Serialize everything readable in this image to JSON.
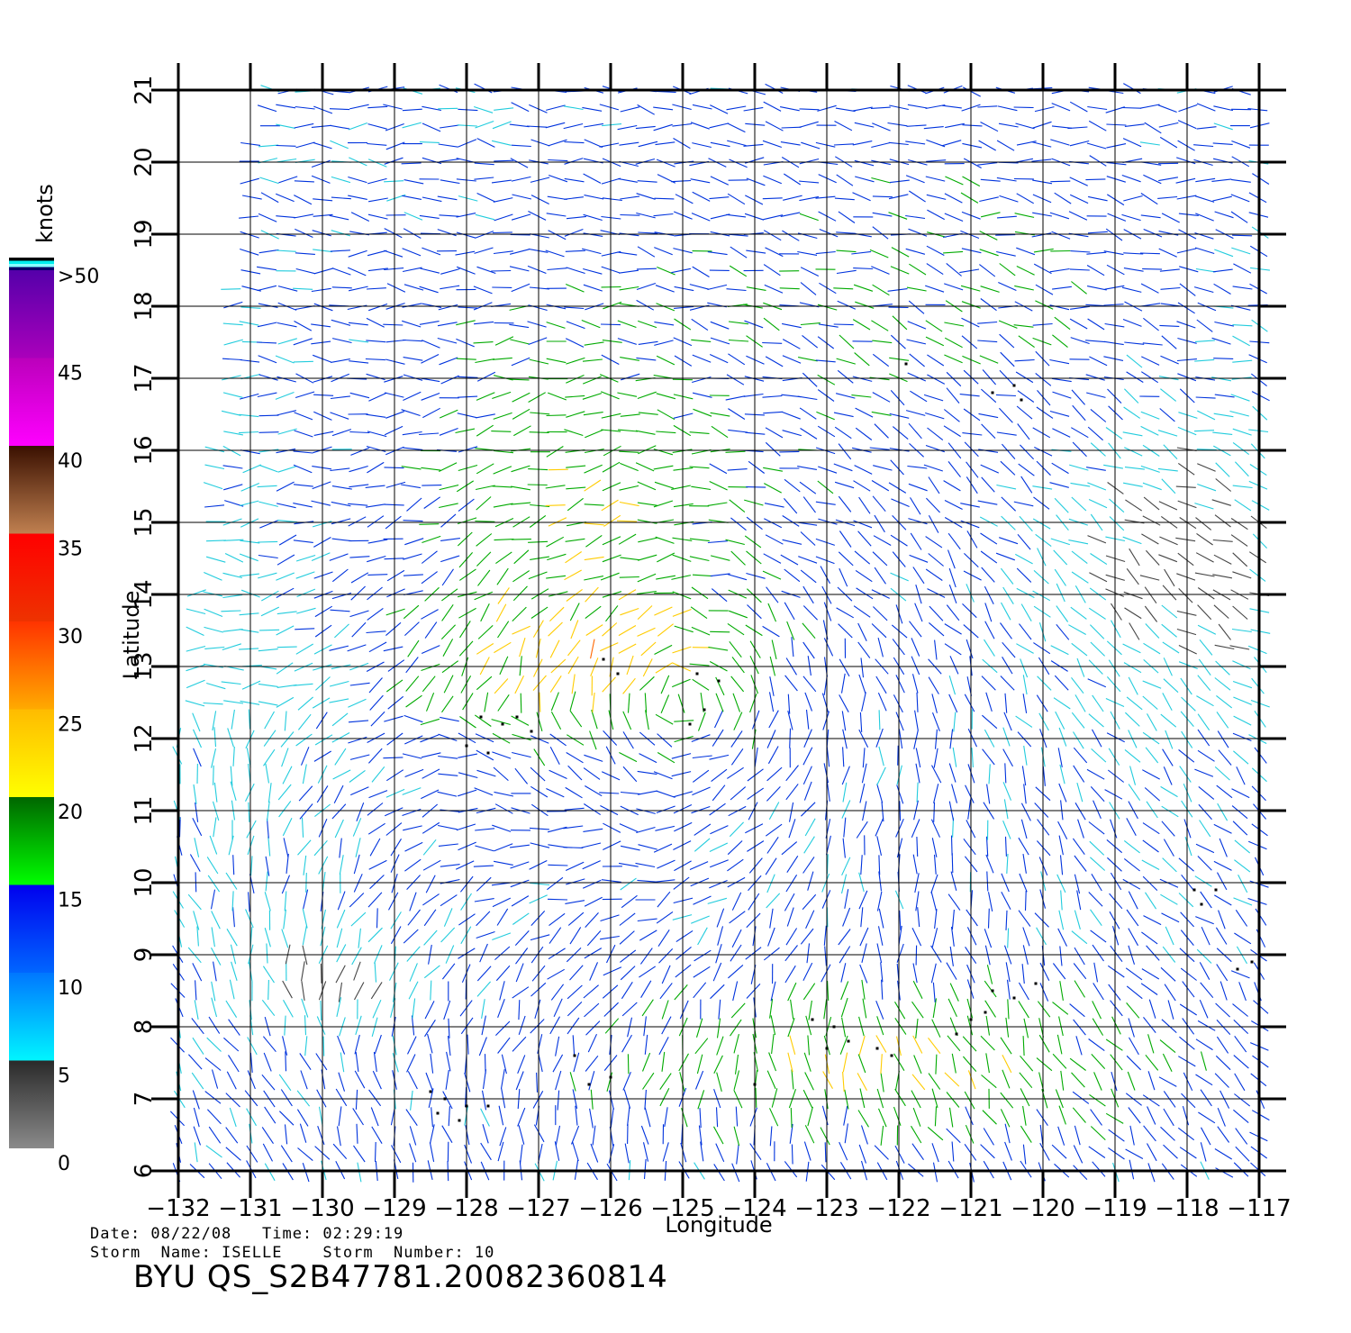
{
  "map": {
    "xlabel": "Longitude",
    "ylabel": "Latitude",
    "lon_range": [
      -132,
      -117
    ],
    "lat_range": [
      6,
      21
    ],
    "lon_ticks": [
      "−132",
      "−131",
      "−130",
      "−129",
      "−128",
      "−127",
      "−126",
      "−125",
      "−124",
      "−123",
      "−122",
      "−121",
      "−120",
      "−119",
      "−118",
      "−117"
    ],
    "lat_ticks": [
      "6",
      "7",
      "8",
      "9",
      "10",
      "11",
      "12",
      "13",
      "14",
      "15",
      "16",
      "17",
      "18",
      "19",
      "20",
      "21"
    ],
    "grid": true
  },
  "colorbar": {
    "unit": "knots",
    "labels": [
      ">50",
      "45",
      "40",
      "35",
      "30",
      "25",
      "20",
      "15",
      "10",
      "5",
      "0"
    ],
    "bands": [
      {
        "from": 0,
        "to": 5,
        "top": "#2a2a2a",
        "bottom": "#8a8a8a"
      },
      {
        "from": 5,
        "to": 10,
        "top": "#0077ff",
        "bottom": "#00f5ff"
      },
      {
        "from": 10,
        "to": 15,
        "top": "#0000ee",
        "bottom": "#0066ff"
      },
      {
        "from": 15,
        "to": 20,
        "top": "#006600",
        "bottom": "#00ff00"
      },
      {
        "from": 20,
        "to": 25,
        "top": "#ffbb00",
        "bottom": "#ffff00"
      },
      {
        "from": 25,
        "to": 30,
        "top": "#ff3300",
        "bottom": "#ffaa00"
      },
      {
        "from": 30,
        "to": 35,
        "top": "#ff0000",
        "bottom": "#ee3300"
      },
      {
        "from": 35,
        "to": 40,
        "top": "#3a1000",
        "bottom": "#c08050"
      },
      {
        "from": 40,
        "to": 45,
        "top": "#bb00bb",
        "bottom": "#ff00ff"
      },
      {
        "from": 45,
        "to": 50,
        "top": "#5500aa",
        "bottom": "#aa00bb"
      }
    ],
    "caps": [
      "#000000",
      "#00eeee",
      "#88ffff",
      "#000066"
    ]
  },
  "wind_colors": {
    "calm": "#444444",
    "light": "#22ccdd",
    "moderate": "#0033dd",
    "fresh": "#00aa00",
    "strong": "#ffcc00",
    "gale": "#ff6600",
    "storm": "#dd0000",
    "rain_flag": "#000000"
  },
  "info": {
    "date_line": "Date: 08/22/08   Time: 02:29:19",
    "storm_line": "Storm  Name: ISELLE    Storm  Number: 10",
    "title": "BYU  QS_S2B47781.20082360814"
  }
}
